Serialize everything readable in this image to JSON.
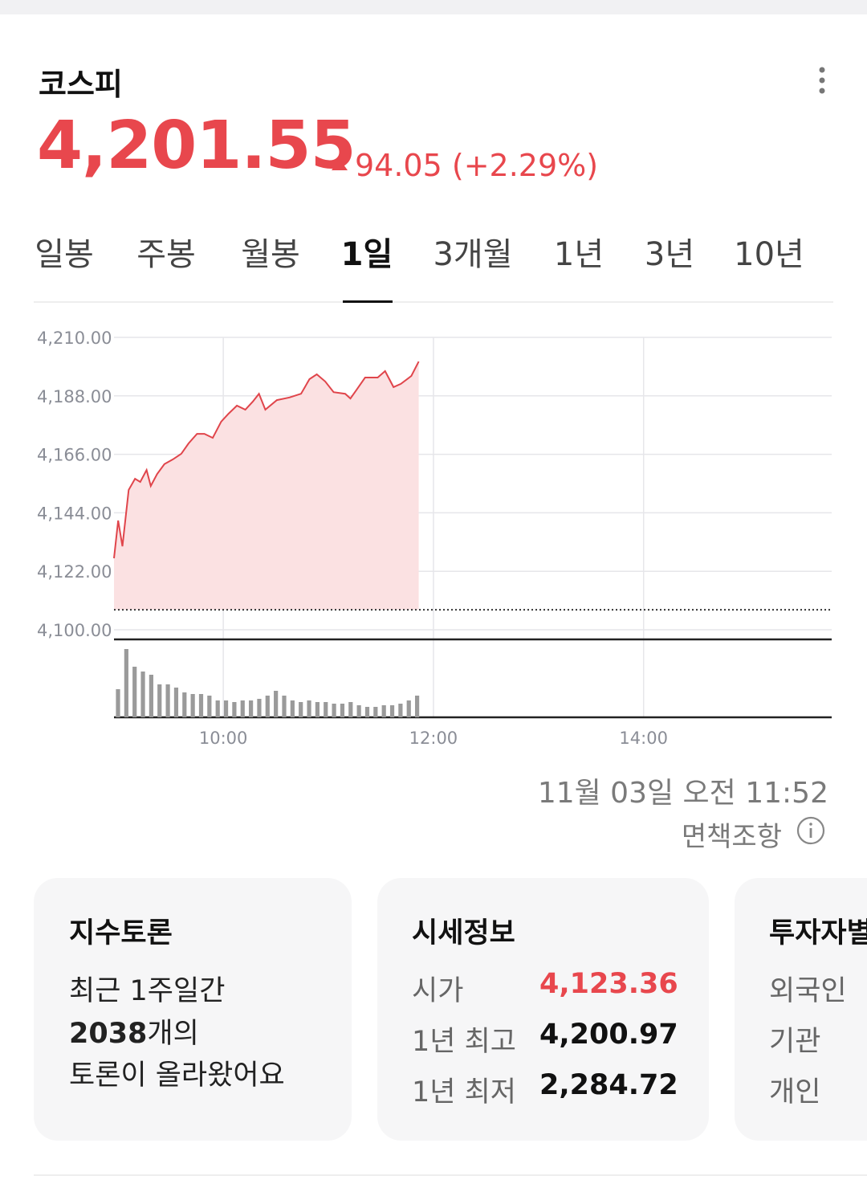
{
  "header": {
    "title": "코스피",
    "price": "4,201.55",
    "change": "94.05",
    "change_pct": "(+2.29%)"
  },
  "tabs": [
    "일봉",
    "주봉",
    "월봉",
    "1일",
    "3개월",
    "1년",
    "3년",
    "10년"
  ],
  "selected_tab": 3,
  "chart": {
    "type": "line",
    "color": "#e0454b",
    "fill": "#fbe1e2",
    "x": [
      8.96,
      9.0,
      9.04,
      9.1,
      9.16,
      9.21,
      9.27,
      9.31,
      9.37,
      9.44,
      9.52,
      9.6,
      9.67,
      9.75,
      9.82,
      9.9,
      9.98,
      10.05,
      10.13,
      10.21,
      10.28,
      10.34,
      10.4,
      10.51,
      10.63,
      10.74,
      10.82,
      10.89,
      10.97,
      11.05,
      11.16,
      11.21,
      11.27,
      11.35,
      11.47,
      11.54,
      11.62,
      11.69,
      11.79,
      11.86
    ],
    "values": [
      4126.9,
      4141.1,
      4131.4,
      4152.6,
      4156.8,
      4155.6,
      4160.1,
      4154.1,
      4158.6,
      4162.3,
      4164.1,
      4166.2,
      4170.1,
      4173.7,
      4173.7,
      4172.2,
      4178.3,
      4181.3,
      4184.3,
      4182.8,
      4185.8,
      4188.8,
      4182.8,
      4186.4,
      4187.4,
      4188.8,
      4194.3,
      4196.1,
      4193.4,
      4189.4,
      4188.8,
      4187.0,
      4190.4,
      4194.9,
      4194.9,
      4197.3,
      4191.3,
      4192.5,
      4195.5,
      4200.9
    ],
    "prev_close": 4107.5,
    "xlim": [
      8.96,
      15.79
    ],
    "xticks": [
      {
        "value": 10,
        "label": "10:00"
      },
      {
        "value": 12,
        "label": "12:00"
      },
      {
        "value": 14,
        "label": "14:00"
      }
    ],
    "ylim": [
      4100,
      4210
    ],
    "yticks": [
      {
        "value": 4210,
        "label": "4,210.00"
      },
      {
        "value": 4188,
        "label": "4,188.00"
      },
      {
        "value": 4166,
        "label": "4,166.00"
      },
      {
        "value": 4144,
        "label": "4,144.00"
      },
      {
        "value": 4122,
        "label": "4,122.00"
      },
      {
        "value": 4100,
        "label": "4,100.00"
      }
    ],
    "grid": true,
    "volume": {
      "color": "#9a9a9a",
      "ylim": [
        0,
        96
      ],
      "values": [
        35,
        85,
        63,
        57,
        53,
        41,
        41,
        37,
        31,
        29,
        29,
        27,
        21,
        21,
        19,
        21,
        21,
        23,
        27,
        33,
        27,
        21,
        19,
        21,
        19,
        19,
        17,
        17,
        19,
        15,
        13,
        13,
        15,
        15,
        17,
        21,
        27
      ]
    }
  },
  "timestamp": "11월 03일 오전 11:52",
  "disclaimer": "면책조항",
  "cards": [
    {
      "title": "지수토론",
      "line1": "최근 1주일간",
      "count": "2038",
      "count_suffix": "개의",
      "line3": "토론이 올라왔어요"
    },
    {
      "title": "시세정보",
      "rows": [
        [
          "시가",
          "4,123.36"
        ],
        [
          "1년 최고",
          "4,200.97"
        ],
        [
          "1년 최저",
          "2,284.72"
        ]
      ]
    },
    {
      "title": "투자자별",
      "rows": [
        "외국인",
        "기관",
        "개인"
      ]
    }
  ]
}
